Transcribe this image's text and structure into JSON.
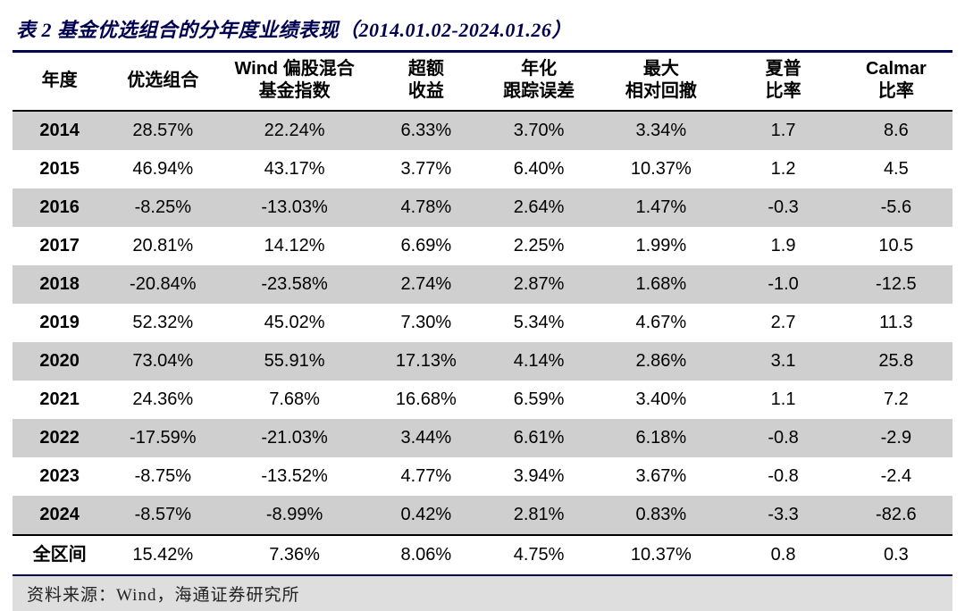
{
  "title": "表 2 基金优选组合的分年度业绩表现（2014.01.02-2024.01.26）",
  "columns": [
    {
      "line1": "年度",
      "line2": ""
    },
    {
      "line1": "优选组合",
      "line2": ""
    },
    {
      "line1": "Wind 偏股混合",
      "line2": "基金指数"
    },
    {
      "line1": "超额",
      "line2": "收益"
    },
    {
      "line1": "年化",
      "line2": "跟踪误差"
    },
    {
      "line1": "最大",
      "line2": "相对回撤"
    },
    {
      "line1": "夏普",
      "line2": "比率"
    },
    {
      "line1": "Calmar",
      "line2": "比率"
    }
  ],
  "rows": [
    {
      "shaded": true,
      "cells": [
        "2014",
        "28.57%",
        "22.24%",
        "6.33%",
        "3.70%",
        "3.34%",
        "1.7",
        "8.6"
      ]
    },
    {
      "shaded": false,
      "cells": [
        "2015",
        "46.94%",
        "43.17%",
        "3.77%",
        "6.40%",
        "10.37%",
        "1.2",
        "4.5"
      ]
    },
    {
      "shaded": true,
      "cells": [
        "2016",
        "-8.25%",
        "-13.03%",
        "4.78%",
        "2.64%",
        "1.47%",
        "-0.3",
        "-5.6"
      ]
    },
    {
      "shaded": false,
      "cells": [
        "2017",
        "20.81%",
        "14.12%",
        "6.69%",
        "2.25%",
        "1.99%",
        "1.9",
        "10.5"
      ]
    },
    {
      "shaded": true,
      "cells": [
        "2018",
        "-20.84%",
        "-23.58%",
        "2.74%",
        "2.87%",
        "1.68%",
        "-1.0",
        "-12.5"
      ]
    },
    {
      "shaded": false,
      "cells": [
        "2019",
        "52.32%",
        "45.02%",
        "7.30%",
        "5.34%",
        "4.67%",
        "2.7",
        "11.3"
      ]
    },
    {
      "shaded": true,
      "cells": [
        "2020",
        "73.04%",
        "55.91%",
        "17.13%",
        "4.14%",
        "2.86%",
        "3.1",
        "25.8"
      ]
    },
    {
      "shaded": false,
      "cells": [
        "2021",
        "24.36%",
        "7.68%",
        "16.68%",
        "6.59%",
        "3.40%",
        "1.1",
        "7.2"
      ]
    },
    {
      "shaded": true,
      "cells": [
        "2022",
        "-17.59%",
        "-21.03%",
        "3.44%",
        "6.61%",
        "6.18%",
        "-0.8",
        "-2.9"
      ]
    },
    {
      "shaded": false,
      "cells": [
        "2023",
        "-8.75%",
        "-13.52%",
        "4.77%",
        "3.94%",
        "3.67%",
        "-0.8",
        "-2.4"
      ]
    },
    {
      "shaded": true,
      "cells": [
        "2024",
        "-8.57%",
        "-8.99%",
        "0.42%",
        "2.81%",
        "0.83%",
        "-3.3",
        "-82.6"
      ]
    }
  ],
  "totalRow": {
    "cells": [
      "全区间",
      "15.42%",
      "7.36%",
      "8.06%",
      "4.75%",
      "10.37%",
      "0.8",
      "0.3"
    ]
  },
  "footer": "资料来源：Wind，海通证券研究所",
  "style": {
    "title_color": "#000050",
    "shaded_bg": "#cfcfcf",
    "footer_bg": "#dedede",
    "border_color": "#000000",
    "title_fontsize": 22,
    "header_fontsize": 20,
    "cell_fontsize": 20,
    "footer_fontsize": 19
  }
}
